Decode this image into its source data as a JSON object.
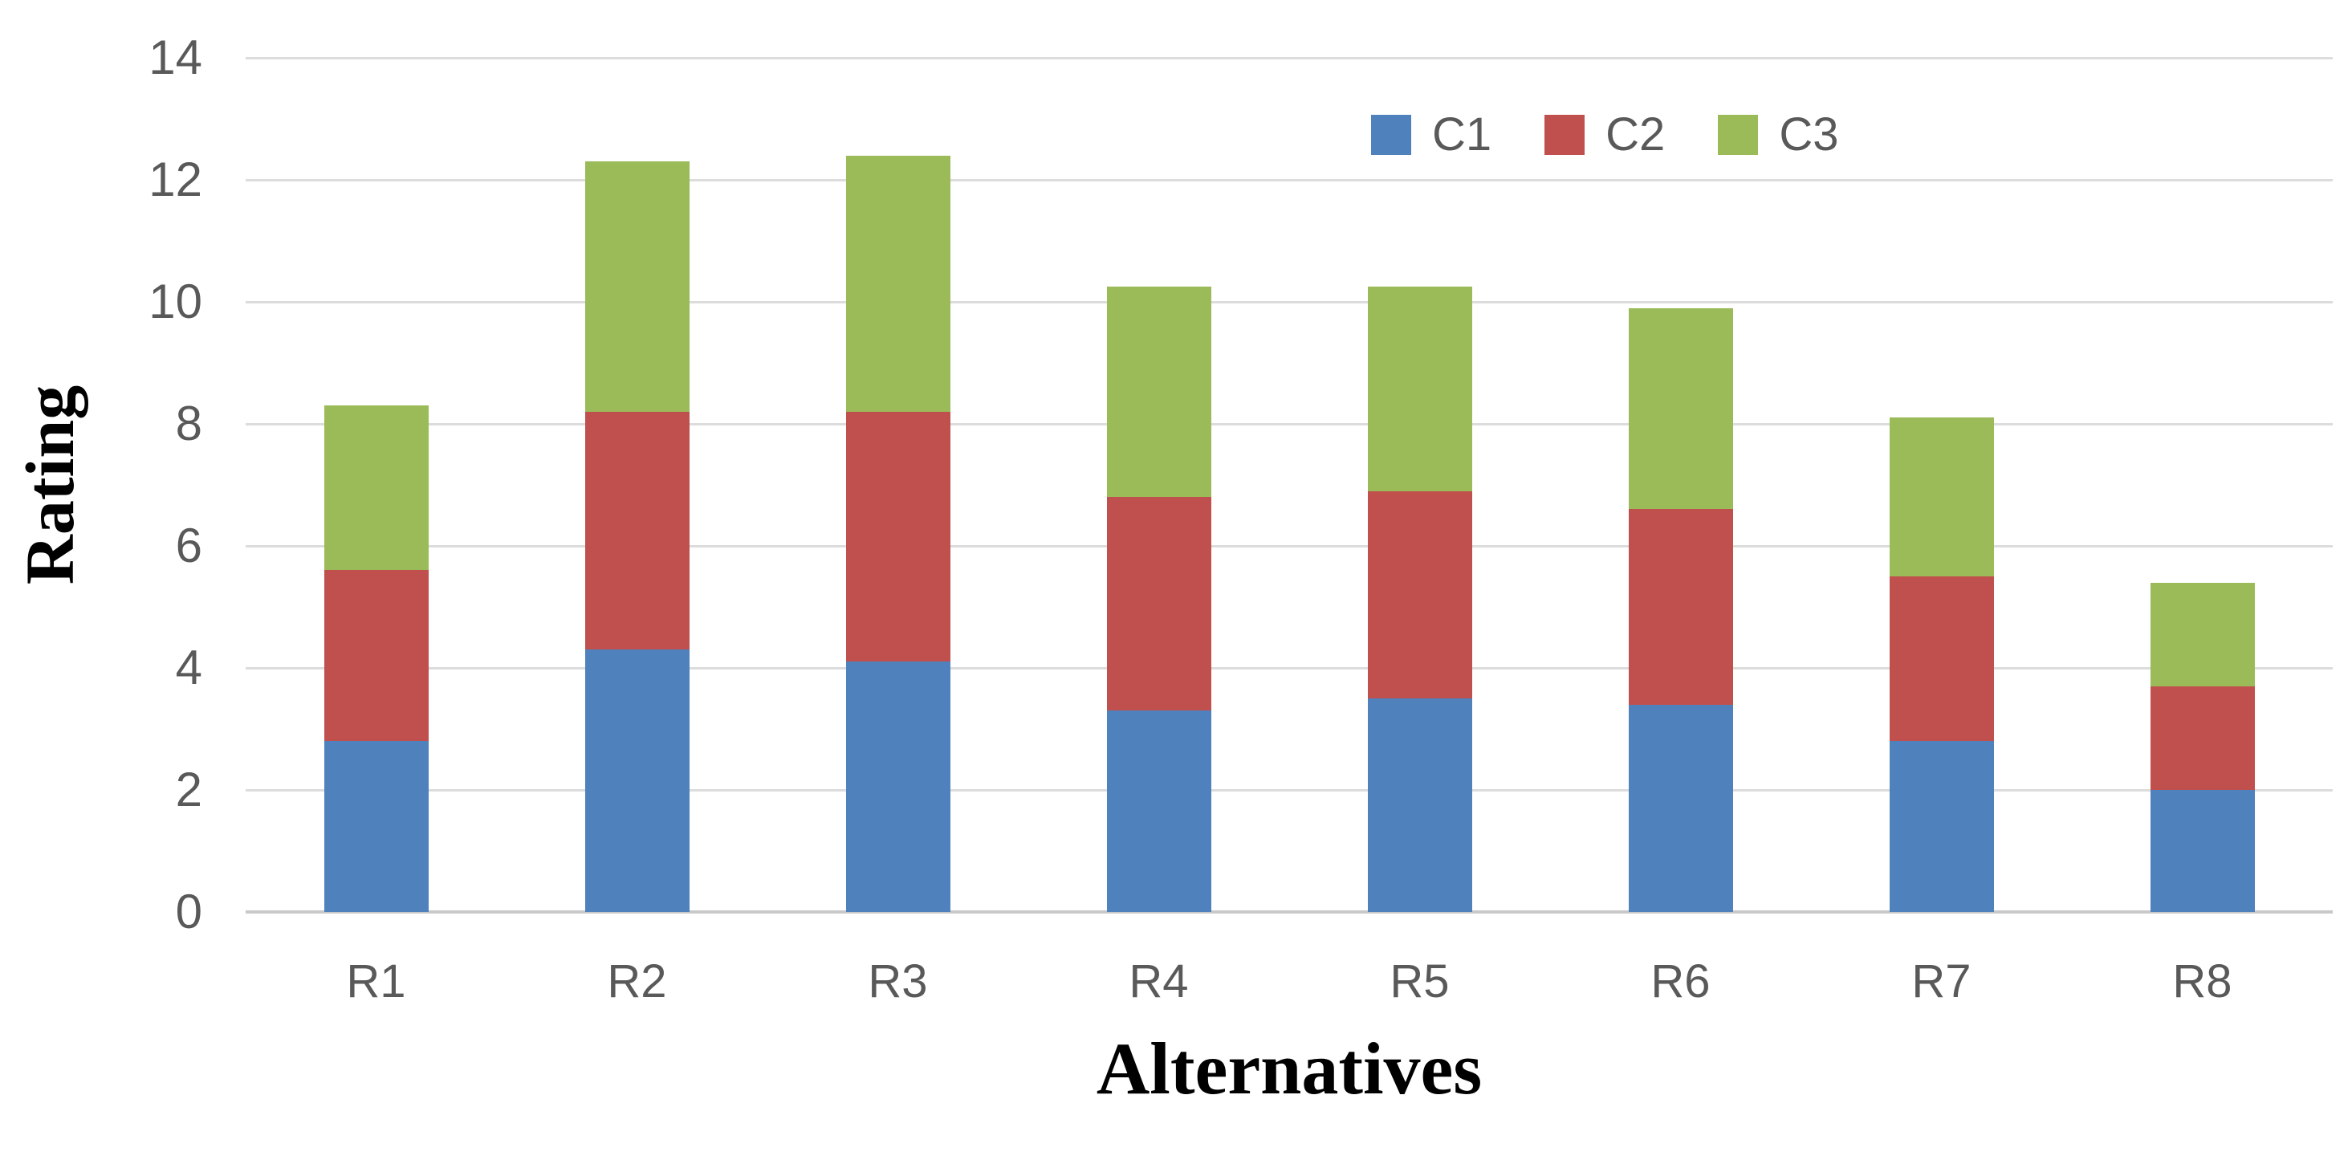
{
  "chart_data": {
    "type": "bar",
    "stacked": true,
    "title": "",
    "xlabel": "Alternatives",
    "ylabel": "Rating",
    "categories": [
      "R1",
      "R2",
      "R3",
      "R4",
      "R5",
      "R6",
      "R7",
      "R8"
    ],
    "series": [
      {
        "name": "C1",
        "color": "#4F81BD",
        "values": [
          2.8,
          4.3,
          4.1,
          3.3,
          3.5,
          3.4,
          2.8,
          2.0
        ]
      },
      {
        "name": "C2",
        "color": "#C0504D",
        "values": [
          2.8,
          3.9,
          4.1,
          3.5,
          3.4,
          3.2,
          2.7,
          1.7
        ]
      },
      {
        "name": "C3",
        "color": "#9BBB59",
        "values": [
          2.7,
          4.1,
          4.2,
          3.45,
          3.35,
          3.3,
          2.6,
          1.7
        ]
      }
    ],
    "stack_totals": [
      8.3,
      12.3,
      12.4,
      10.25,
      10.25,
      9.9,
      8.1,
      5.4
    ],
    "ylim": [
      0,
      14
    ],
    "yticks": [
      0,
      2,
      4,
      6,
      8,
      10,
      12,
      14
    ],
    "grid": true,
    "legend_position": "top-right",
    "legend_entries": [
      "C1",
      "C2",
      "C3"
    ]
  },
  "colors": {
    "background": "#FFFFFF",
    "gridline": "#DCDCDC",
    "axis_line": "#C9C9C9",
    "tick_text": "#595959",
    "legend_text": "#595959",
    "title_text": "#000000"
  }
}
